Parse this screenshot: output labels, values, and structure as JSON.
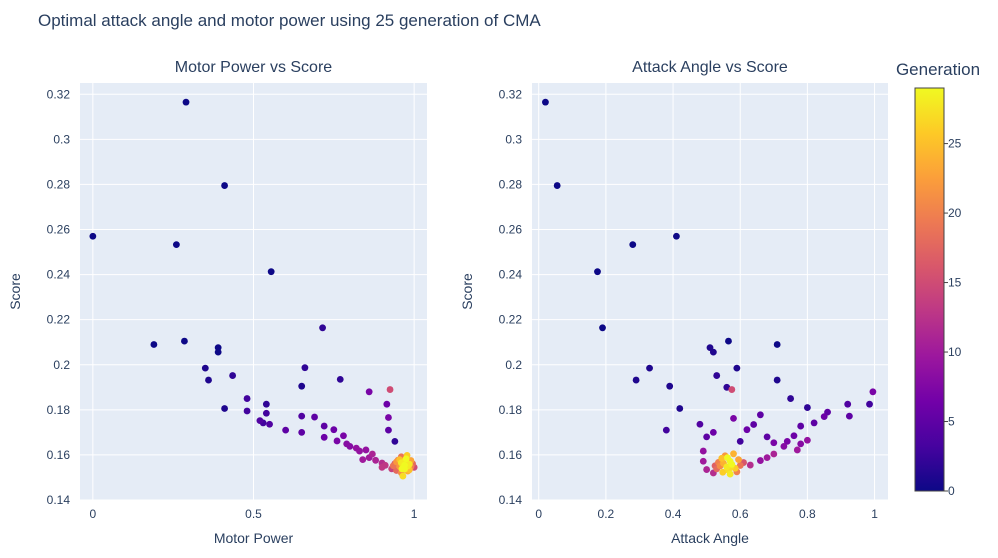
{
  "title": "Optimal attack angle and motor power using 25 generation of CMA",
  "colorbar": {
    "title": "Generation",
    "range": [
      0,
      29
    ],
    "ticks": [
      0,
      5,
      10,
      15,
      20,
      25
    ],
    "tick_labels": [
      "0",
      "5",
      "10",
      "15",
      "20",
      "25"
    ],
    "colorscale": [
      "#0d0887",
      "#46039f",
      "#7201a8",
      "#9c179e",
      "#bd3786",
      "#d8576b",
      "#ed7953",
      "#fb9f3a",
      "#fdca26",
      "#f0f921"
    ]
  },
  "chart_data": [
    {
      "type": "scatter",
      "title": "Motor Power vs Score",
      "xlabel": "Motor Power",
      "ylabel": "Score",
      "xlim": [
        -0.04,
        1.04
      ],
      "ylim": [
        0.14,
        0.325
      ],
      "xticks": [
        0,
        0.5,
        1
      ],
      "xtick_labels": [
        "0",
        "0.5",
        "1"
      ],
      "yticks": [
        0.14,
        0.16,
        0.18,
        0.2,
        0.22,
        0.24,
        0.26,
        0.28,
        0.3,
        0.32
      ],
      "ytick_labels": [
        "0.14",
        "0.16",
        "0.18",
        "0.2",
        "0.22",
        "0.24",
        "0.26",
        "0.28",
        "0.3",
        "0.32"
      ],
      "grid": true,
      "points": [
        [
          0.0,
          0.257,
          0
        ],
        [
          0.29,
          0.3165,
          0
        ],
        [
          0.41,
          0.2795,
          0
        ],
        [
          0.26,
          0.2533,
          0
        ],
        [
          0.555,
          0.2413,
          0
        ],
        [
          0.19,
          0.209,
          0
        ],
        [
          0.285,
          0.2105,
          0
        ],
        [
          0.39,
          0.2076,
          0
        ],
        [
          0.39,
          0.2056,
          0
        ],
        [
          0.35,
          0.1985,
          1
        ],
        [
          0.36,
          0.1932,
          1
        ],
        [
          0.435,
          0.1952,
          2
        ],
        [
          0.41,
          0.1806,
          1
        ],
        [
          0.715,
          0.2164,
          2
        ],
        [
          0.66,
          0.1987,
          2
        ],
        [
          0.65,
          0.1905,
          1
        ],
        [
          0.77,
          0.1935,
          2
        ],
        [
          0.48,
          0.185,
          3
        ],
        [
          0.48,
          0.1795,
          3
        ],
        [
          0.54,
          0.1825,
          2
        ],
        [
          0.54,
          0.1785,
          3
        ],
        [
          0.52,
          0.1752,
          4
        ],
        [
          0.53,
          0.1742,
          3
        ],
        [
          0.55,
          0.1736,
          4
        ],
        [
          0.65,
          0.1772,
          4
        ],
        [
          0.69,
          0.1768,
          5
        ],
        [
          0.6,
          0.171,
          5
        ],
        [
          0.65,
          0.17,
          5
        ],
        [
          0.72,
          0.1728,
          5
        ],
        [
          0.75,
          0.1712,
          6
        ],
        [
          0.72,
          0.1678,
          6
        ],
        [
          0.76,
          0.1662,
          7
        ],
        [
          0.78,
          0.1685,
          7
        ],
        [
          0.79,
          0.1649,
          8
        ],
        [
          0.8,
          0.1638,
          8
        ],
        [
          0.82,
          0.163,
          9
        ],
        [
          0.83,
          0.1617,
          9
        ],
        [
          0.85,
          0.1622,
          9
        ],
        [
          0.86,
          0.1588,
          10
        ],
        [
          0.87,
          0.1604,
          11
        ],
        [
          0.88,
          0.1576,
          11
        ],
        [
          0.84,
          0.1579,
          10
        ],
        [
          0.9,
          0.1564,
          12
        ],
        [
          0.91,
          0.1554,
          13
        ],
        [
          0.86,
          0.188,
          7
        ],
        [
          0.915,
          0.1825,
          6
        ],
        [
          0.92,
          0.1766,
          7
        ],
        [
          0.925,
          0.189,
          15
        ],
        [
          0.94,
          0.166,
          2
        ],
        [
          0.92,
          0.171,
          5
        ],
        [
          0.9,
          0.1545,
          13
        ],
        [
          0.93,
          0.1538,
          14
        ],
        [
          0.94,
          0.1561,
          16
        ],
        [
          0.945,
          0.1531,
          18
        ],
        [
          0.95,
          0.1577,
          20
        ],
        [
          0.955,
          0.1548,
          22
        ],
        [
          0.96,
          0.1521,
          21
        ],
        [
          0.96,
          0.1592,
          19
        ],
        [
          0.965,
          0.1558,
          24
        ],
        [
          0.97,
          0.1542,
          26
        ],
        [
          0.975,
          0.1566,
          27
        ],
        [
          0.98,
          0.1551,
          28
        ],
        [
          0.985,
          0.1534,
          25
        ],
        [
          0.99,
          0.1575,
          23
        ],
        [
          0.965,
          0.1506,
          27
        ],
        [
          0.975,
          0.1583,
          29
        ],
        [
          0.97,
          0.1554,
          29
        ],
        [
          0.96,
          0.1565,
          28
        ],
        [
          0.98,
          0.1528,
          24
        ],
        [
          0.99,
          0.1547,
          20
        ],
        [
          0.995,
          0.1561,
          18
        ],
        [
          1.0,
          0.1545,
          15
        ],
        [
          0.955,
          0.1579,
          25
        ],
        [
          0.945,
          0.1569,
          22
        ],
        [
          0.935,
          0.1552,
          19
        ],
        [
          0.97,
          0.1537,
          29
        ],
        [
          0.978,
          0.1598,
          26
        ],
        [
          0.962,
          0.1538,
          29
        ],
        [
          0.985,
          0.1559,
          28
        ],
        [
          0.968,
          0.1569,
          27
        ]
      ]
    },
    {
      "type": "scatter",
      "title": "Attack Angle vs Score",
      "xlabel": "Attack Angle",
      "ylabel": "Score",
      "xlim": [
        -0.02,
        1.04
      ],
      "ylim": [
        0.14,
        0.325
      ],
      "xticks": [
        0,
        0.2,
        0.4,
        0.6,
        0.8,
        1
      ],
      "xtick_labels": [
        "0",
        "0.2",
        "0.4",
        "0.6",
        "0.8",
        "1"
      ],
      "yticks": [
        0.14,
        0.16,
        0.18,
        0.2,
        0.22,
        0.24,
        0.26,
        0.28,
        0.3,
        0.32
      ],
      "ytick_labels": [
        "0.14",
        "0.16",
        "0.18",
        "0.2",
        "0.22",
        "0.24",
        "0.26",
        "0.28",
        "0.3",
        "0.32"
      ],
      "grid": true,
      "points": [
        [
          0.02,
          0.3165,
          0
        ],
        [
          0.055,
          0.2795,
          0
        ],
        [
          0.175,
          0.2413,
          0
        ],
        [
          0.28,
          0.2533,
          0
        ],
        [
          0.41,
          0.257,
          0
        ],
        [
          0.19,
          0.2164,
          0
        ],
        [
          0.29,
          0.1932,
          1
        ],
        [
          0.33,
          0.1985,
          1
        ],
        [
          0.39,
          0.1905,
          1
        ],
        [
          0.42,
          0.1806,
          1
        ],
        [
          0.38,
          0.171,
          3
        ],
        [
          0.51,
          0.2076,
          1
        ],
        [
          0.52,
          0.2056,
          1
        ],
        [
          0.565,
          0.2105,
          0
        ],
        [
          0.59,
          0.1985,
          1
        ],
        [
          0.53,
          0.1952,
          2
        ],
        [
          0.56,
          0.19,
          2
        ],
        [
          0.575,
          0.189,
          15
        ],
        [
          0.71,
          0.209,
          0
        ],
        [
          0.71,
          0.1932,
          1
        ],
        [
          0.75,
          0.185,
          2
        ],
        [
          0.8,
          0.181,
          2
        ],
        [
          0.86,
          0.179,
          5
        ],
        [
          0.92,
          0.1825,
          4
        ],
        [
          0.925,
          0.1772,
          5
        ],
        [
          0.985,
          0.1825,
          3
        ],
        [
          0.995,
          0.188,
          7
        ],
        [
          0.85,
          0.177,
          6
        ],
        [
          0.82,
          0.1742,
          5
        ],
        [
          0.78,
          0.1728,
          5
        ],
        [
          0.76,
          0.1685,
          6
        ],
        [
          0.74,
          0.166,
          7
        ],
        [
          0.73,
          0.1638,
          8
        ],
        [
          0.7,
          0.1654,
          7
        ],
        [
          0.68,
          0.168,
          5
        ],
        [
          0.66,
          0.1778,
          5
        ],
        [
          0.64,
          0.1735,
          5
        ],
        [
          0.62,
          0.1712,
          6
        ],
        [
          0.6,
          0.166,
          3
        ],
        [
          0.58,
          0.1762,
          7
        ],
        [
          0.48,
          0.1736,
          4
        ],
        [
          0.52,
          0.17,
          6
        ],
        [
          0.5,
          0.168,
          5
        ],
        [
          0.49,
          0.1617,
          9
        ],
        [
          0.49,
          0.1572,
          10
        ],
        [
          0.5,
          0.1535,
          11
        ],
        [
          0.52,
          0.152,
          12
        ],
        [
          0.66,
          0.1575,
          9
        ],
        [
          0.68,
          0.1588,
          10
        ],
        [
          0.7,
          0.1604,
          11
        ],
        [
          0.63,
          0.1555,
          12
        ],
        [
          0.8,
          0.1665,
          9
        ],
        [
          0.78,
          0.1649,
          8
        ],
        [
          0.77,
          0.1622,
          10
        ],
        [
          0.53,
          0.1538,
          18
        ],
        [
          0.54,
          0.1551,
          21
        ],
        [
          0.55,
          0.1563,
          24
        ],
        [
          0.56,
          0.1547,
          28
        ],
        [
          0.57,
          0.1572,
          29
        ],
        [
          0.565,
          0.1532,
          27
        ],
        [
          0.575,
          0.1558,
          29
        ],
        [
          0.585,
          0.1541,
          26
        ],
        [
          0.595,
          0.1579,
          23
        ],
        [
          0.545,
          0.1585,
          25
        ],
        [
          0.555,
          0.1596,
          22
        ],
        [
          0.535,
          0.1567,
          20
        ],
        [
          0.525,
          0.1552,
          17
        ],
        [
          0.6,
          0.1553,
          19
        ],
        [
          0.61,
          0.1566,
          16
        ],
        [
          0.57,
          0.1515,
          28
        ],
        [
          0.58,
          0.1605,
          24
        ],
        [
          0.59,
          0.1525,
          20
        ],
        [
          0.548,
          0.1523,
          26
        ],
        [
          0.562,
          0.1588,
          29
        ],
        [
          0.572,
          0.1545,
          27
        ]
      ]
    }
  ]
}
